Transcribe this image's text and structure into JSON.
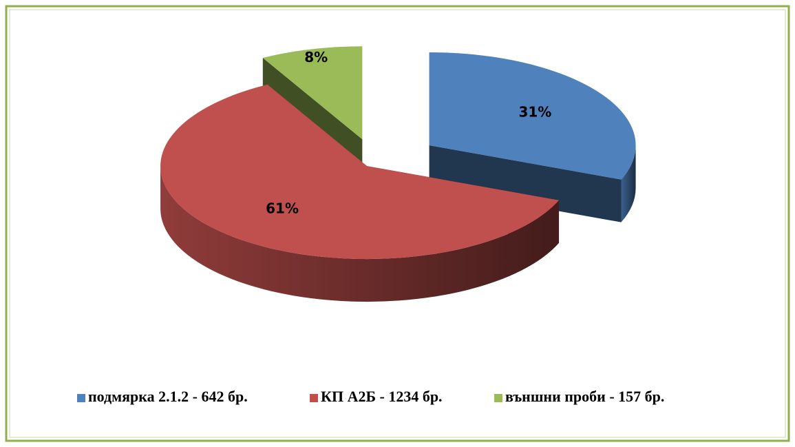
{
  "chart_data": {
    "type": "pie",
    "categories": [
      "подмярка 2.1.2 - 642 бр.",
      "КП А2Б - 1234 бр.",
      "външни проби - 157 бр."
    ],
    "values": [
      31,
      61,
      8
    ],
    "value_labels": [
      "31%",
      "61%",
      "8%"
    ],
    "colors": [
      "#4f81bd",
      "#c0504d",
      "#9bbb59"
    ],
    "legend": "bottom"
  }
}
